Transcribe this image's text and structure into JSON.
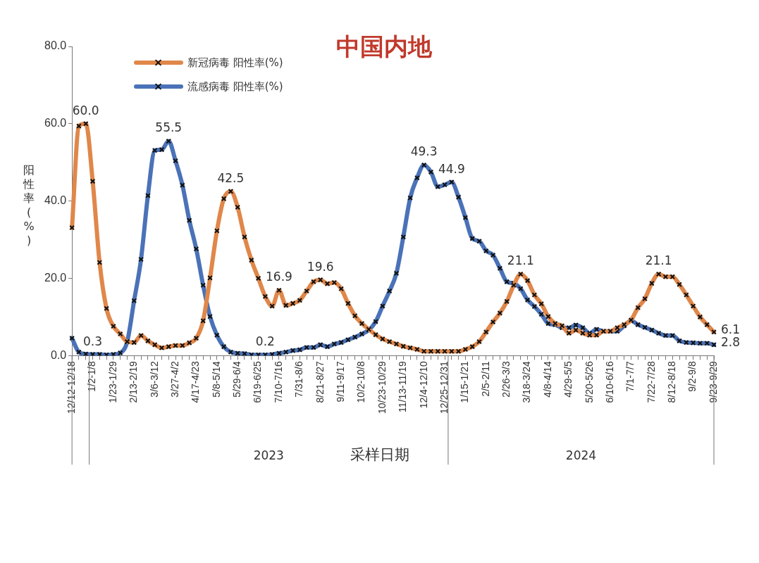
{
  "chart_data": {
    "type": "line",
    "title": "中国内地",
    "xlabel": "采样日期",
    "ylabel": "阳性率(%)",
    "categories": [
      "12/12-12/18",
      null,
      null,
      "1/2-1/8",
      null,
      null,
      "1/23-1/29",
      null,
      null,
      "2/13-2/19",
      null,
      null,
      "3/6-3/12",
      null,
      null,
      "3/27-4/2",
      null,
      null,
      "4/17-4/23",
      null,
      null,
      "5/8-5/14",
      null,
      null,
      "5/29-6/4",
      null,
      null,
      "6/19-6/25",
      null,
      null,
      "7/10-7/16",
      null,
      null,
      "7/31-8/6",
      null,
      null,
      "8/21-8/27",
      null,
      null,
      "9/11-9/17",
      null,
      null,
      "10/2-10/8",
      null,
      null,
      "10/23-10/29",
      null,
      null,
      "11/13-11/19",
      null,
      null,
      "12/4-12/10",
      null,
      null,
      "12/25-12/31",
      null,
      null,
      "1/15-1/21",
      null,
      null,
      "2/5-2/11",
      null,
      null,
      "2/26-3/3",
      null,
      null,
      "3/18-3/24",
      null,
      null,
      "4/8-4/14",
      null,
      null,
      "4/29-5/5",
      null,
      null,
      "5/20-5/26",
      null,
      null,
      "6/10-6/16",
      null,
      null,
      "7/1-7/7",
      null,
      null,
      "7/22-7/28",
      null,
      null,
      "8/12-8/18",
      null,
      null,
      "9/2-9/8",
      null,
      null,
      "9/23-9/29"
    ],
    "series": [
      {
        "name": "新冠病毒 阳性率(%)",
        "color": "#e0874a",
        "values": [
          33.1,
          59.4,
          60.0,
          45.1,
          24.1,
          12.2,
          7.6,
          5.6,
          3.6,
          3.4,
          5.2,
          3.8,
          2.8,
          2.0,
          2.3,
          2.6,
          2.6,
          3.3,
          4.5,
          9.0,
          20.1,
          32.3,
          40.6,
          42.5,
          38.4,
          30.7,
          24.7,
          20.0,
          15.3,
          12.8,
          16.9,
          13.0,
          13.5,
          14.3,
          16.7,
          19.1,
          19.6,
          18.6,
          18.9,
          17.3,
          13.5,
          10.3,
          8.3,
          6.8,
          5.4,
          4.3,
          3.6,
          3.0,
          2.4,
          2.0,
          1.6,
          1.1,
          1.1,
          1.1,
          1.1,
          1.1,
          1.1,
          1.6,
          2.3,
          3.6,
          6.1,
          8.7,
          11.0,
          14.0,
          18.2,
          21.1,
          19.4,
          15.7,
          13.4,
          10.1,
          8.3,
          7.7,
          5.8,
          6.6,
          5.8,
          5.3,
          5.3,
          6.3,
          6.3,
          7.2,
          8.0,
          9.2,
          12.4,
          14.7,
          18.7,
          21.1,
          20.4,
          20.4,
          18.4,
          15.7,
          12.8,
          10.0,
          8.0,
          6.1
        ],
        "value_labels": [
          null,
          null,
          "60.0",
          null,
          null,
          null,
          null,
          null,
          null,
          null,
          null,
          null,
          null,
          null,
          null,
          null,
          null,
          null,
          null,
          null,
          null,
          null,
          null,
          "42.5",
          null,
          null,
          null,
          null,
          null,
          null,
          "16.9",
          null,
          null,
          null,
          null,
          null,
          "19.6",
          null,
          null,
          null,
          null,
          null,
          null,
          null,
          null,
          null,
          null,
          null,
          null,
          null,
          null,
          null,
          null,
          null,
          null,
          null,
          null,
          null,
          null,
          null,
          null,
          null,
          null,
          null,
          null,
          "21.1",
          null,
          null,
          null,
          null,
          null,
          null,
          null,
          null,
          null,
          null,
          null,
          null,
          null,
          null,
          null,
          null,
          null,
          null,
          null,
          "21.1",
          null,
          null,
          null,
          null,
          null,
          null,
          null,
          "6.1"
        ]
      },
      {
        "name": "流感病毒 阳性率(%)",
        "color": "#4a72b8",
        "values": [
          4.5,
          0.9,
          0.4,
          0.3,
          0.3,
          0.2,
          0.3,
          0.7,
          3.6,
          14.2,
          24.9,
          41.4,
          53.1,
          53.3,
          55.5,
          50.4,
          44.1,
          35.0,
          27.6,
          18.2,
          10.1,
          5.3,
          2.3,
          0.9,
          0.6,
          0.5,
          0.2,
          0.2,
          0.2,
          0.3,
          0.6,
          0.9,
          1.3,
          1.5,
          2.1,
          2.1,
          2.8,
          2.3,
          3.0,
          3.4,
          4.1,
          4.8,
          5.6,
          6.6,
          8.8,
          12.8,
          16.7,
          21.3,
          30.7,
          40.8,
          46.0,
          49.3,
          47.5,
          43.7,
          44.2,
          44.9,
          41.0,
          35.7,
          30.3,
          29.6,
          27.1,
          26.0,
          22.6,
          19.1,
          18.7,
          17.3,
          14.4,
          12.7,
          10.7,
          8.3,
          8.0,
          7.2,
          7.2,
          7.9,
          7.2,
          5.8,
          6.8,
          6.3,
          6.3,
          6.3,
          7.7,
          9.0,
          8.0,
          7.3,
          6.6,
          5.8,
          5.2,
          5.2,
          3.8,
          3.4,
          3.3,
          3.2,
          3.2,
          2.8
        ],
        "value_labels": [
          null,
          null,
          null,
          "0.3",
          null,
          null,
          null,
          null,
          null,
          null,
          null,
          null,
          null,
          null,
          "55.5",
          null,
          null,
          null,
          null,
          null,
          null,
          null,
          null,
          null,
          null,
          null,
          null,
          null,
          "0.2",
          null,
          null,
          null,
          null,
          null,
          null,
          null,
          null,
          null,
          null,
          null,
          null,
          null,
          null,
          null,
          null,
          null,
          null,
          null,
          null,
          null,
          null,
          "49.3",
          null,
          null,
          null,
          "44.9",
          null,
          null,
          null,
          null,
          null,
          null,
          null,
          null,
          null,
          null,
          null,
          null,
          null,
          null,
          null,
          null,
          null,
          null,
          null,
          null,
          null,
          null,
          null,
          null,
          null,
          null,
          null,
          null,
          null,
          null,
          null,
          null,
          null,
          null,
          null,
          null,
          null,
          "2.8"
        ]
      }
    ],
    "ylim": [
      0,
      80
    ],
    "yticks": [
      {
        "value": 0,
        "label": "0.0"
      },
      {
        "value": 20,
        "label": "20.0"
      },
      {
        "value": 40,
        "label": "40.0"
      },
      {
        "value": 60,
        "label": "60.0"
      },
      {
        "value": 80,
        "label": "80.0"
      }
    ],
    "annotations": [
      "2023",
      "2024"
    ],
    "grid": false,
    "legend": "top left",
    "marker": "cross",
    "line_style": "solid"
  }
}
